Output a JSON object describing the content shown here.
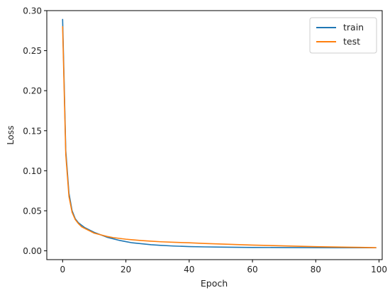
{
  "chart_data": {
    "type": "line",
    "title": "",
    "xlabel": "Epoch",
    "ylabel": "Loss",
    "xlim": [
      -5,
      101
    ],
    "ylim": [
      -0.011,
      0.3
    ],
    "xticks": [
      0,
      20,
      40,
      60,
      80,
      100
    ],
    "yticks": [
      0.0,
      0.05,
      0.1,
      0.15,
      0.2,
      0.25,
      0.3
    ],
    "ytick_labels": [
      "0.00",
      "0.05",
      "0.10",
      "0.15",
      "0.20",
      "0.25",
      "0.30"
    ],
    "grid": false,
    "legend_position": "top-right",
    "series": [
      {
        "name": "train",
        "color": "#1f77b4",
        "x": [
          0,
          1,
          2,
          3,
          4,
          5,
          6,
          7,
          8,
          9,
          10,
          12,
          14,
          16,
          18,
          20,
          22,
          25,
          28,
          31,
          35,
          40,
          45,
          50,
          55,
          60,
          70,
          80,
          90,
          99
        ],
        "y": [
          0.289,
          0.125,
          0.072,
          0.05,
          0.04,
          0.035,
          0.032,
          0.029,
          0.027,
          0.025,
          0.023,
          0.02,
          0.017,
          0.015,
          0.013,
          0.0115,
          0.01,
          0.0088,
          0.0076,
          0.0068,
          0.006,
          0.0053,
          0.0049,
          0.0046,
          0.0044,
          0.0042,
          0.0041,
          0.004,
          0.0039,
          0.0038
        ]
      },
      {
        "name": "test",
        "color": "#ff7f0e",
        "x": [
          0,
          1,
          2,
          3,
          4,
          5,
          6,
          7,
          8,
          9,
          10,
          12,
          14,
          16,
          18,
          20,
          22,
          25,
          28,
          31,
          35,
          40,
          45,
          50,
          55,
          60,
          70,
          80,
          90,
          99
        ],
        "y": [
          0.28,
          0.12,
          0.068,
          0.048,
          0.039,
          0.034,
          0.03,
          0.028,
          0.026,
          0.024,
          0.022,
          0.02,
          0.018,
          0.0165,
          0.0155,
          0.0145,
          0.0138,
          0.0128,
          0.012,
          0.0113,
          0.0107,
          0.01,
          0.0092,
          0.0085,
          0.0078,
          0.0072,
          0.0062,
          0.0052,
          0.0045,
          0.004
        ]
      }
    ]
  }
}
